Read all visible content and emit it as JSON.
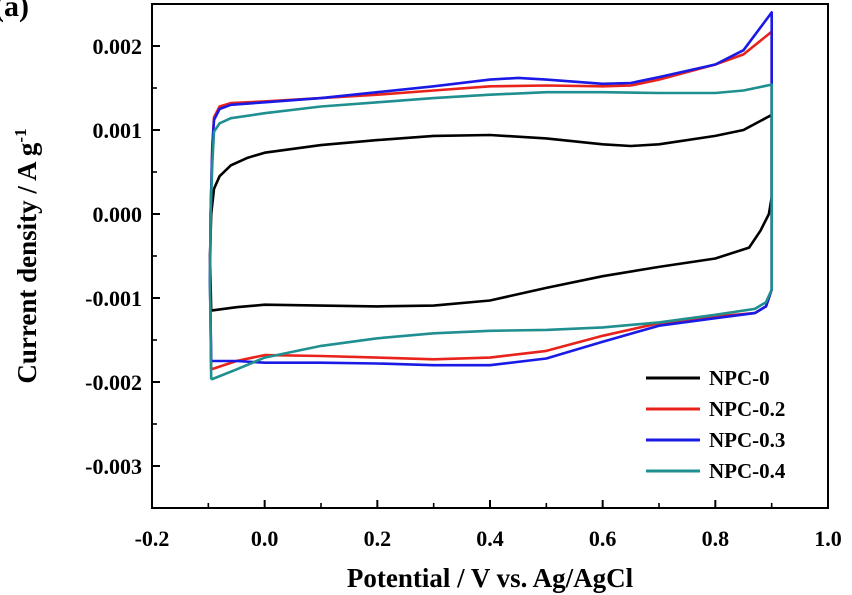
{
  "panel_label": "(a)",
  "chart_data": {
    "type": "line",
    "title": "",
    "xlabel": "Potential / V vs. Ag/AgCl",
    "ylabel": "Current density / A g",
    "ylabel_superscript": "-1",
    "xlim": [
      -0.2,
      1.0
    ],
    "ylim": [
      -0.0035,
      0.0025
    ],
    "x_ticks": [
      "-0.2",
      "0.0",
      "0.2",
      "0.4",
      "0.6",
      "0.8",
      "1.0"
    ],
    "y_ticks": [
      "0.002",
      "0.001",
      "0.000",
      "-0.001",
      "-0.002",
      "-0.003"
    ],
    "legend_position": "bottom-right",
    "series": [
      {
        "name": "NPC-0",
        "color": "#000000",
        "points": [
          [
            -0.095,
            -0.00115
          ],
          [
            -0.097,
            -0.0005
          ],
          [
            -0.095,
            0.0
          ],
          [
            -0.09,
            0.0003
          ],
          [
            -0.08,
            0.00045
          ],
          [
            -0.06,
            0.00058
          ],
          [
            -0.03,
            0.00067
          ],
          [
            0.0,
            0.00073
          ],
          [
            0.1,
            0.00082
          ],
          [
            0.2,
            0.00088
          ],
          [
            0.3,
            0.00093
          ],
          [
            0.4,
            0.00094
          ],
          [
            0.5,
            0.0009
          ],
          [
            0.6,
            0.00083
          ],
          [
            0.65,
            0.00081
          ],
          [
            0.7,
            0.00083
          ],
          [
            0.8,
            0.00093
          ],
          [
            0.85,
            0.001
          ],
          [
            0.9,
            0.00118
          ],
          [
            0.9,
            0.0006
          ],
          [
            0.9,
            0.0002
          ],
          [
            0.895,
            0.0
          ],
          [
            0.88,
            -0.0002
          ],
          [
            0.86,
            -0.0004
          ],
          [
            0.8,
            -0.00053
          ],
          [
            0.7,
            -0.00063
          ],
          [
            0.6,
            -0.00074
          ],
          [
            0.5,
            -0.00088
          ],
          [
            0.4,
            -0.00103
          ],
          [
            0.3,
            -0.00109
          ],
          [
            0.2,
            -0.0011
          ],
          [
            0.1,
            -0.00109
          ],
          [
            0.0,
            -0.00108
          ],
          [
            -0.05,
            -0.00111
          ],
          [
            -0.095,
            -0.00115
          ]
        ]
      },
      {
        "name": "NPC-0.2",
        "color": "#e8231b",
        "points": [
          [
            -0.095,
            -0.00185
          ],
          [
            -0.097,
            -0.0008
          ],
          [
            -0.096,
            0.0
          ],
          [
            -0.093,
            0.0008
          ],
          [
            -0.09,
            0.00115
          ],
          [
            -0.08,
            0.00128
          ],
          [
            -0.06,
            0.00132
          ],
          [
            0.0,
            0.00134
          ],
          [
            0.1,
            0.00138
          ],
          [
            0.2,
            0.00142
          ],
          [
            0.3,
            0.00147
          ],
          [
            0.4,
            0.00152
          ],
          [
            0.5,
            0.00153
          ],
          [
            0.6,
            0.00152
          ],
          [
            0.65,
            0.00153
          ],
          [
            0.7,
            0.0016
          ],
          [
            0.8,
            0.00178
          ],
          [
            0.85,
            0.0019
          ],
          [
            0.9,
            0.00217
          ],
          [
            0.9,
            0.0
          ],
          [
            0.9,
            -0.0009
          ],
          [
            0.89,
            -0.0011
          ],
          [
            0.87,
            -0.00118
          ],
          [
            0.8,
            -0.00122
          ],
          [
            0.7,
            -0.0013
          ],
          [
            0.6,
            -0.00145
          ],
          [
            0.5,
            -0.00163
          ],
          [
            0.4,
            -0.00171
          ],
          [
            0.3,
            -0.00173
          ],
          [
            0.2,
            -0.00171
          ],
          [
            0.1,
            -0.00169
          ],
          [
            0.0,
            -0.00168
          ],
          [
            -0.05,
            -0.00175
          ],
          [
            -0.095,
            -0.00185
          ]
        ]
      },
      {
        "name": "NPC-0.3",
        "color": "#1a1ae6",
        "points": [
          [
            -0.095,
            -0.00175
          ],
          [
            -0.097,
            -0.0008
          ],
          [
            -0.096,
            0.0
          ],
          [
            -0.093,
            0.0008
          ],
          [
            -0.09,
            0.00112
          ],
          [
            -0.08,
            0.00125
          ],
          [
            -0.06,
            0.0013
          ],
          [
            0.0,
            0.00133
          ],
          [
            0.1,
            0.00138
          ],
          [
            0.2,
            0.00145
          ],
          [
            0.3,
            0.00152
          ],
          [
            0.4,
            0.0016
          ],
          [
            0.45,
            0.00162
          ],
          [
            0.5,
            0.0016
          ],
          [
            0.6,
            0.00155
          ],
          [
            0.65,
            0.00156
          ],
          [
            0.7,
            0.00163
          ],
          [
            0.8,
            0.00178
          ],
          [
            0.85,
            0.00195
          ],
          [
            0.9,
            0.0024
          ],
          [
            0.9,
            0.0
          ],
          [
            0.9,
            -0.0009
          ],
          [
            0.89,
            -0.0011
          ],
          [
            0.87,
            -0.00118
          ],
          [
            0.8,
            -0.00124
          ],
          [
            0.7,
            -0.00133
          ],
          [
            0.6,
            -0.00152
          ],
          [
            0.5,
            -0.00172
          ],
          [
            0.4,
            -0.0018
          ],
          [
            0.3,
            -0.0018
          ],
          [
            0.2,
            -0.00178
          ],
          [
            0.1,
            -0.00177
          ],
          [
            0.0,
            -0.00177
          ],
          [
            -0.05,
            -0.00175
          ],
          [
            -0.095,
            -0.00175
          ]
        ]
      },
      {
        "name": "NPC-0.4",
        "color": "#1f8f8f",
        "points": [
          [
            -0.095,
            -0.00197
          ],
          [
            -0.097,
            -0.0008
          ],
          [
            -0.096,
            0.0
          ],
          [
            -0.093,
            0.0006
          ],
          [
            -0.09,
            0.00098
          ],
          [
            -0.08,
            0.00108
          ],
          [
            -0.06,
            0.00114
          ],
          [
            0.0,
            0.0012
          ],
          [
            0.1,
            0.00128
          ],
          [
            0.2,
            0.00133
          ],
          [
            0.3,
            0.00138
          ],
          [
            0.4,
            0.00142
          ],
          [
            0.5,
            0.00145
          ],
          [
            0.6,
            0.00145
          ],
          [
            0.7,
            0.00144
          ],
          [
            0.8,
            0.00144
          ],
          [
            0.85,
            0.00147
          ],
          [
            0.9,
            0.00154
          ],
          [
            0.9,
            0.0
          ],
          [
            0.9,
            -0.0009
          ],
          [
            0.89,
            -0.00105
          ],
          [
            0.87,
            -0.00113
          ],
          [
            0.8,
            -0.0012
          ],
          [
            0.7,
            -0.00129
          ],
          [
            0.6,
            -0.00135
          ],
          [
            0.5,
            -0.00138
          ],
          [
            0.4,
            -0.00139
          ],
          [
            0.3,
            -0.00142
          ],
          [
            0.2,
            -0.00148
          ],
          [
            0.1,
            -0.00157
          ],
          [
            0.0,
            -0.00171
          ],
          [
            -0.05,
            -0.00185
          ],
          [
            -0.095,
            -0.00197
          ]
        ]
      }
    ]
  }
}
